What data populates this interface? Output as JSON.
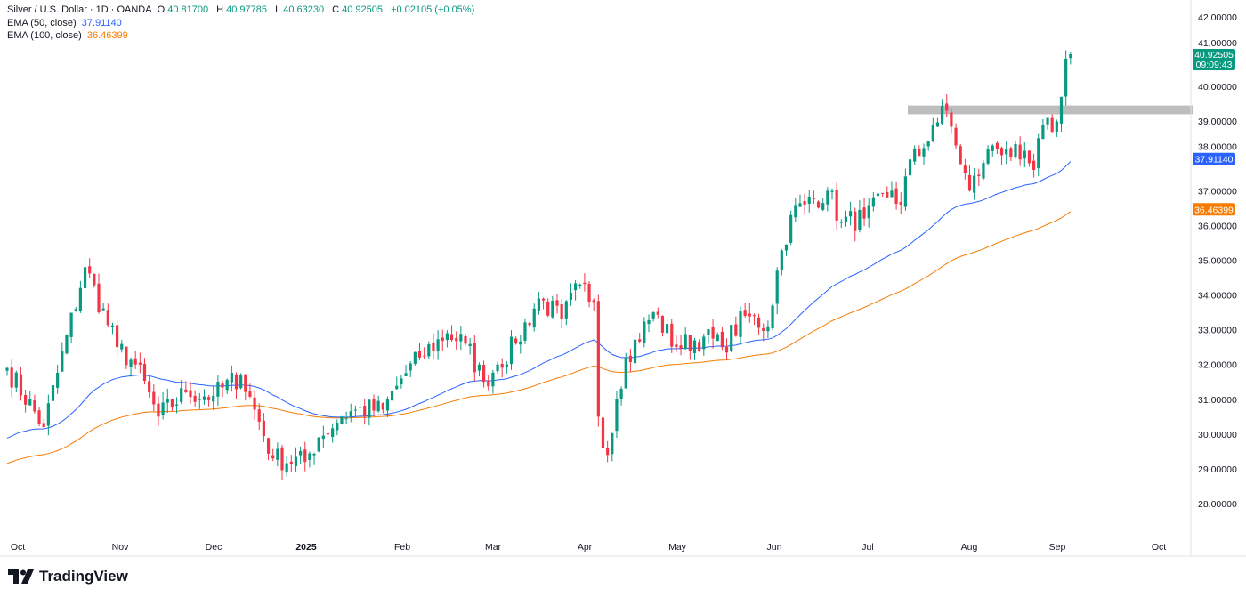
{
  "legend": {
    "symbol": "Silver / U.S. Dollar · 1D · OANDA",
    "o_label": "O",
    "o": "40.81700",
    "h_label": "H",
    "h": "40.97785",
    "l_label": "L",
    "l": "40.63230",
    "c_label": "C",
    "c": "40.92505",
    "change": "+0.02105 (+0.05%)",
    "ema50_label": "EMA (50, close)",
    "ema50": "37.91140",
    "ema100_label": "EMA (100, close)",
    "ema100": "36.46399"
  },
  "price_tag": {
    "value": "40.92505",
    "countdown": "09:09:43"
  },
  "ema50_tag": "37.91140",
  "ema100_tag": "36.46399",
  "brand": "TradingView",
  "colors": {
    "up": "#089981",
    "down": "#f23645",
    "ema50": "#2962ff",
    "ema100": "#f57c00",
    "zone": "#bdbdbd"
  },
  "chart_data": {
    "type": "candlestick",
    "title": "Silver / U.S. Dollar · 1D · OANDA",
    "ylim": [
      27.5,
      42.2
    ],
    "y_ticks": [
      "42.00000",
      "41.00000",
      "40.00000",
      "39.00000",
      "38.00000",
      "37.00000",
      "36.00000",
      "35.00000",
      "34.00000",
      "33.00000",
      "32.00000",
      "31.00000",
      "30.00000",
      "29.00000",
      "28.00000"
    ],
    "x_ticks": [
      "Oct",
      "Nov",
      "Dec",
      "2025",
      "Feb",
      "Mar",
      "Apr",
      "May",
      "Jun",
      "Jul",
      "Aug",
      "Sep",
      "Oct"
    ],
    "close_path": [
      [
        0,
        31.9
      ],
      [
        8,
        30.2
      ],
      [
        17,
        34.8
      ],
      [
        24,
        32.5
      ],
      [
        28,
        32.0
      ],
      [
        33,
        30.5
      ],
      [
        39,
        31.2
      ],
      [
        45,
        31.1
      ],
      [
        51,
        31.7
      ],
      [
        54,
        30.7
      ],
      [
        58,
        29.3
      ],
      [
        65,
        29.2
      ],
      [
        68,
        29.9
      ],
      [
        73,
        30.5
      ],
      [
        76,
        30.7
      ],
      [
        82,
        30.7
      ],
      [
        86,
        31.6
      ],
      [
        90,
        32.2
      ],
      [
        96,
        32.9
      ],
      [
        100,
        32.6
      ],
      [
        104,
        31.5
      ],
      [
        107,
        32.0
      ],
      [
        111,
        32.6
      ],
      [
        116,
        33.9
      ],
      [
        121,
        33.3
      ],
      [
        125,
        34.3
      ],
      [
        128,
        33.8
      ],
      [
        129,
        30.5
      ],
      [
        131,
        29.4
      ],
      [
        133,
        31.0
      ],
      [
        135,
        32.2
      ],
      [
        141,
        33.5
      ],
      [
        146,
        32.5
      ],
      [
        152,
        32.8
      ],
      [
        156,
        32.5
      ],
      [
        161,
        33.4
      ],
      [
        166,
        33.1
      ],
      [
        168,
        34.7
      ],
      [
        171,
        36.3
      ],
      [
        174,
        36.6
      ],
      [
        179,
        37.0
      ],
      [
        182,
        36.1
      ],
      [
        187,
        36.2
      ],
      [
        193,
        37.0
      ],
      [
        195,
        36.6
      ],
      [
        197,
        37.9
      ],
      [
        199,
        38.0
      ],
      [
        202,
        38.9
      ],
      [
        205,
        39.3
      ],
      [
        207,
        38.3
      ],
      [
        210,
        37.0
      ],
      [
        213,
        37.8
      ],
      [
        215,
        38.3
      ],
      [
        218,
        38.2
      ],
      [
        221,
        37.9
      ],
      [
        224,
        37.6
      ],
      [
        226,
        38.9
      ],
      [
        228,
        38.7
      ],
      [
        230,
        39.7
      ],
      [
        231,
        40.8
      ],
      [
        232,
        40.925
      ]
    ],
    "last_candle": {
      "open": 40.817,
      "high": 40.97785,
      "low": 40.6323,
      "close": 40.92505
    },
    "ema50_last": 37.9114,
    "ema100_last": 36.46399,
    "resistance_zone": [
      39.2,
      39.45
    ],
    "series": [
      {
        "name": "EMA (50, close)"
      },
      {
        "name": "EMA (100, close)"
      }
    ]
  }
}
